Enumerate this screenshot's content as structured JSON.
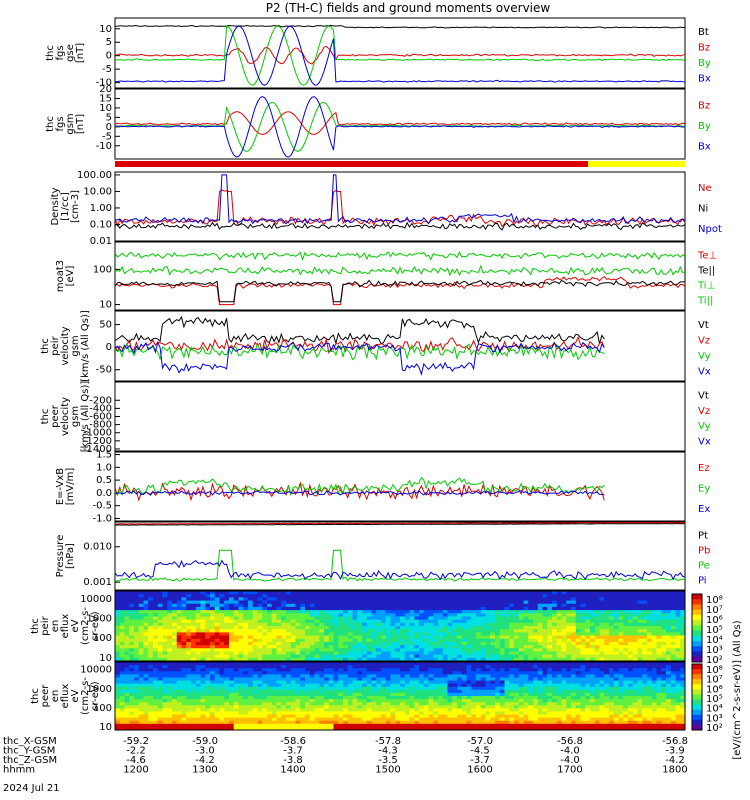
{
  "title": "P2 (TH-C) fields and ground moments overview",
  "colors": {
    "black": "#000000",
    "red": "#dd0000",
    "green": "#00cc00",
    "blue": "#0000dd",
    "yellow": "#ffff00"
  },
  "chart_data": {
    "type": "line",
    "x_label_rows": [
      {
        "label": "thc_X-GSM",
        "values": [
          "-59.2",
          "-59.0",
          "-58.6",
          "-57.8",
          "-57.0",
          "-56.8",
          "-56.8"
        ]
      },
      {
        "label": "thc_Y-GSM",
        "values": [
          "-2.2",
          "-3.0",
          "-3.7",
          "-4.3",
          "-4.5",
          "-4.0",
          "-3.9"
        ]
      },
      {
        "label": "thc_Z-GSM",
        "values": [
          "-4.6",
          "-4.2",
          "-3.8",
          "-3.5",
          "-3.7",
          "-4.0",
          "-4.2"
        ]
      },
      {
        "label": "hhmm",
        "values": [
          "1200",
          "1300",
          "1400",
          "1500",
          "1600",
          "1700",
          "1800"
        ]
      }
    ],
    "date_label": "2024 Jul 21",
    "xlim": [
      1200,
      1800
    ],
    "panels": [
      {
        "id": "fgs-gse",
        "ylabel": [
          "thc",
          "fgs",
          "gse",
          "[nT]"
        ],
        "ylim": [
          -12,
          14
        ],
        "ticks": [
          "10",
          "5",
          "0",
          "-5",
          "-10"
        ],
        "legend": [
          {
            "name": "Bt",
            "color": "black"
          },
          {
            "name": "Bz",
            "color": "red"
          },
          {
            "name": "By",
            "color": "green"
          },
          {
            "name": "Bx",
            "color": "blue"
          }
        ]
      },
      {
        "id": "fgs-gsm",
        "ylabel": [
          "thc",
          "fgs",
          "gsm",
          "[nT]"
        ],
        "ylim": [
          -17,
          20
        ],
        "ticks": [
          "20",
          "15",
          "10",
          "5",
          "0",
          "-5",
          "-10"
        ],
        "legend": [
          {
            "name": "Bz",
            "color": "red"
          },
          {
            "name": "By",
            "color": "green"
          },
          {
            "name": "Bx",
            "color": "blue"
          }
        ]
      },
      {
        "id": "density",
        "ylabel": [
          "Density",
          "[1/cc]",
          "[cm-3]"
        ],
        "log": true,
        "ylim": [
          0.01,
          150
        ],
        "ticks": [
          "100.00",
          "10.00",
          "1.00",
          "0.10",
          "0.01"
        ],
        "legend": [
          {
            "name": "Ne",
            "color": "red"
          },
          {
            "name": "Ni",
            "color": "black"
          },
          {
            "name": "Npot",
            "color": "blue"
          }
        ]
      },
      {
        "id": "temp",
        "ylabel": [
          "moat3",
          "[eV]"
        ],
        "log": true,
        "ylim": [
          7,
          600
        ],
        "ticks": [
          "100",
          "10"
        ],
        "legend": [
          {
            "name": "Te⊥",
            "color": "red"
          },
          {
            "name": "Te||",
            "color": "black"
          },
          {
            "name": "Ti⊥",
            "color": "green"
          },
          {
            "name": "Ti||",
            "color": "green"
          }
        ]
      },
      {
        "id": "peir-vel",
        "ylabel": [
          "thc",
          "peir",
          "velocity",
          "gsm",
          "[km/s (All Qs)]"
        ],
        "ylim": [
          -75,
          80
        ],
        "ticks": [
          "50",
          "0",
          "-50"
        ],
        "legend": [
          {
            "name": "Vt",
            "color": "black"
          },
          {
            "name": "Vz",
            "color": "red"
          },
          {
            "name": "Vy",
            "color": "green"
          },
          {
            "name": "Vx",
            "color": "blue"
          }
        ]
      },
      {
        "id": "peer-vel",
        "ylabel": [
          "thc",
          "peer",
          "velocity",
          "gsm",
          "[km/s (All Qs)]"
        ],
        "ylim": [
          -1450,
          250
        ],
        "ticks": [
          "-200",
          "-400",
          "-600",
          "-800",
          "-1000",
          "-1200",
          "-1400"
        ],
        "legend": [
          {
            "name": "Vt",
            "color": "black"
          },
          {
            "name": "Vz",
            "color": "red"
          },
          {
            "name": "Vy",
            "color": "green"
          },
          {
            "name": "Vx",
            "color": "blue"
          }
        ]
      },
      {
        "id": "efield",
        "ylabel": [
          "E=-VxB",
          "[mV/m]"
        ],
        "ylim": [
          -1.1,
          1.6
        ],
        "ticks": [
          "1.5",
          "1.0",
          "0.5",
          "0.0",
          "-0.5",
          "-1.0"
        ],
        "legend": [
          {
            "name": "Ez",
            "color": "red"
          },
          {
            "name": "Ey",
            "color": "green"
          },
          {
            "name": "Ex",
            "color": "blue"
          }
        ]
      },
      {
        "id": "pressure",
        "ylabel": [
          "Pressure",
          "[nPa]"
        ],
        "log": true,
        "ylim": [
          0.0006,
          0.05
        ],
        "ticks": [
          "0.010",
          "0.001"
        ],
        "legend": [
          {
            "name": "Pt",
            "color": "black"
          },
          {
            "name": "Pb",
            "color": "red"
          },
          {
            "name": "Pe",
            "color": "green"
          },
          {
            "name": "Pi",
            "color": "blue"
          }
        ]
      },
      {
        "id": "peir-spec",
        "type": "heatmap",
        "ylabel": [
          "thc",
          "peir",
          "en",
          "eflux",
          "eV",
          "(cm2-s-",
          "sr-eV)"
        ],
        "log": true,
        "ylim": [
          7,
          25000
        ],
        "ticks": [
          "10000",
          "1000",
          "100",
          "10"
        ]
      },
      {
        "id": "peer-spec",
        "type": "heatmap",
        "ylabel": [
          "thc",
          "peer",
          "en",
          "eflux",
          "eV",
          "(cm2-s-",
          "sr-eV)"
        ],
        "log": true,
        "ylim": [
          7,
          25000
        ],
        "ticks": [
          "10000",
          "1000",
          "100",
          "10"
        ]
      }
    ],
    "colorbar": {
      "label": "[eV/(cm^2-s-sr-eV)] (All Qs)",
      "top_ticks": [
        "10⁸",
        "10⁷",
        "10⁶",
        "10⁵",
        "10⁴",
        "10³",
        "10²"
      ],
      "bottom_ticks": [
        "10⁸",
        "10⁷",
        "10⁶",
        "10⁵",
        "10⁴",
        "10³",
        "10²"
      ]
    }
  }
}
